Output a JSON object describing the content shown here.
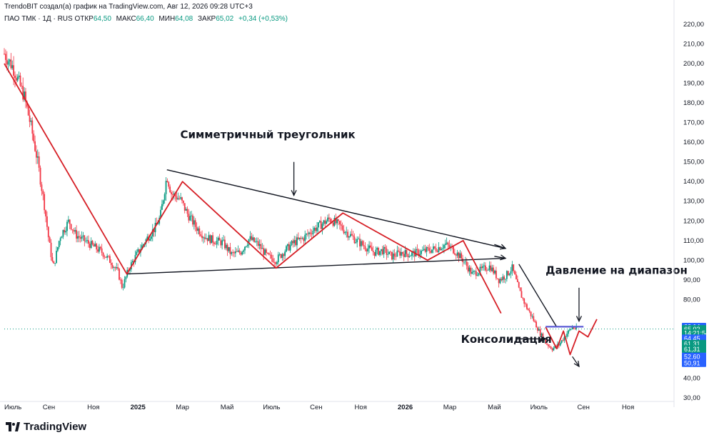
{
  "header": {
    "top_line": "TrendoBIT создал(а) график на TradingView.com, Авг 12, 2026 09:28 UTC+3",
    "symbol_line": "ПАО ТМК · 1Д · RUS",
    "ohlc": [
      {
        "label": "ОТКР",
        "value": "64,50"
      },
      {
        "label": "МАКС",
        "value": "66,40"
      },
      {
        "label": "МИН",
        "value": "64,08"
      },
      {
        "label": "ЗАКР",
        "value": "65,02"
      }
    ],
    "change": "+0,34 (+0,53%)"
  },
  "footer": {
    "logo_text": "TradingView"
  },
  "colors": {
    "up": "#089981",
    "down": "#f23645",
    "pattern": "#d61f26",
    "trendline": "#131722",
    "resistance": "#5b5bd6",
    "current_line": "#089981"
  },
  "chart_data": {
    "type": "candlestick",
    "y_ticks": [
      "220,00",
      "210,00",
      "200,00",
      "190,00",
      "180,00",
      "170,00",
      "160,00",
      "150,00",
      "140,00",
      "130,00",
      "120,00",
      "110,00",
      "100,00",
      "90,00",
      "80,00",
      "40,00",
      "30,00"
    ],
    "y_tick_values": [
      220,
      210,
      200,
      190,
      180,
      170,
      160,
      150,
      140,
      130,
      120,
      110,
      100,
      90,
      80,
      40,
      30
    ],
    "x_ticks": [
      {
        "label": "Июль",
        "x": 0
      },
      {
        "label": "Сен",
        "x": 2
      },
      {
        "label": "Ноя",
        "x": 4
      },
      {
        "label": "2025",
        "x": 6,
        "bold": true
      },
      {
        "label": "Мар",
        "x": 8
      },
      {
        "label": "Май",
        "x": 10
      },
      {
        "label": "Июль",
        "x": 12
      },
      {
        "label": "Сен",
        "x": 14
      },
      {
        "label": "Ноя",
        "x": 16
      },
      {
        "label": "2026",
        "x": 18,
        "bold": true
      },
      {
        "label": "Мар",
        "x": 20
      },
      {
        "label": "Май",
        "x": 22
      },
      {
        "label": "Июль",
        "x": 24
      },
      {
        "label": "Сен",
        "x": 26
      },
      {
        "label": "Ноя",
        "x": 28
      }
    ],
    "x_unit": "months since Jul 2024",
    "price_path": [
      [
        0.0,
        205
      ],
      [
        0.4,
        198
      ],
      [
        0.9,
        183
      ],
      [
        1.2,
        168
      ],
      [
        1.5,
        150
      ],
      [
        1.8,
        128
      ],
      [
        2.0,
        110
      ],
      [
        2.2,
        96
      ],
      [
        2.5,
        112
      ],
      [
        2.9,
        120
      ],
      [
        3.2,
        113
      ],
      [
        3.6,
        110
      ],
      [
        4.0,
        107
      ],
      [
        4.4,
        104
      ],
      [
        4.8,
        99
      ],
      [
        5.1,
        94
      ],
      [
        5.3,
        86
      ],
      [
        5.6,
        96
      ],
      [
        6.0,
        104
      ],
      [
        6.4,
        111
      ],
      [
        6.8,
        117
      ],
      [
        7.0,
        122
      ],
      [
        7.3,
        143
      ],
      [
        7.5,
        134
      ],
      [
        7.9,
        131
      ],
      [
        8.2,
        124
      ],
      [
        8.6,
        117
      ],
      [
        9.0,
        112
      ],
      [
        9.4,
        110
      ],
      [
        9.8,
        109
      ],
      [
        10.2,
        103
      ],
      [
        10.6,
        104
      ],
      [
        11.0,
        111
      ],
      [
        11.4,
        108
      ],
      [
        11.8,
        102
      ],
      [
        12.2,
        100
      ],
      [
        12.6,
        105
      ],
      [
        13.0,
        109
      ],
      [
        13.4,
        111
      ],
      [
        13.8,
        115
      ],
      [
        14.2,
        118
      ],
      [
        14.6,
        121
      ],
      [
        15.0,
        118
      ],
      [
        15.4,
        114
      ],
      [
        15.8,
        110
      ],
      [
        16.2,
        107
      ],
      [
        16.6,
        104
      ],
      [
        17.0,
        105
      ],
      [
        17.4,
        102
      ],
      [
        17.8,
        104
      ],
      [
        18.2,
        103
      ],
      [
        18.6,
        104
      ],
      [
        19.0,
        105
      ],
      [
        19.4,
        106
      ],
      [
        19.8,
        108
      ],
      [
        20.2,
        105
      ],
      [
        20.6,
        100
      ],
      [
        21.0,
        93
      ],
      [
        21.4,
        95
      ],
      [
        21.8,
        97
      ],
      [
        22.2,
        90
      ],
      [
        22.5,
        92
      ],
      [
        22.8,
        96
      ],
      [
        23.1,
        85
      ],
      [
        23.4,
        77
      ],
      [
        23.7,
        71
      ],
      [
        24.0,
        64
      ],
      [
        24.3,
        58
      ],
      [
        24.6,
        55
      ],
      [
        24.9,
        57
      ],
      [
        25.2,
        62
      ],
      [
        25.5,
        66
      ],
      [
        25.7,
        65
      ]
    ],
    "ylim": [
      30,
      225
    ],
    "xlim": [
      0,
      30
    ],
    "current_price": 65.02,
    "price_labels": [
      {
        "text": "66,14",
        "price": 66.14,
        "color": "#2962ff"
      },
      {
        "text": "65,02",
        "price": 65.02,
        "color": "#089981"
      },
      {
        "text": "14:21:54",
        "price": 62.9,
        "color": "#089981"
      },
      {
        "text": "64,45",
        "price": 60.2,
        "color": "#2962ff"
      },
      {
        "text": "61,31",
        "price": 57.5,
        "color": "#089981"
      },
      {
        "text": "61,31",
        "price": 54.8,
        "color": "#089981"
      },
      {
        "text": "52,60",
        "price": 51.0,
        "color": "#2962ff"
      },
      {
        "text": "50,91",
        "price": 47.7,
        "color": "#2962ff"
      }
    ],
    "annotations": [
      {
        "text": "Симметричный треугольник",
        "x": 7.9,
        "y": 162
      },
      {
        "text": "Давление на диапазон",
        "x": 24.3,
        "y": 93
      },
      {
        "text": "Консолидация",
        "x": 20.5,
        "y": 58
      }
    ],
    "lines": {
      "trendlines": [
        {
          "points": [
            [
              7.3,
              146
            ],
            [
              22.5,
              106
            ]
          ]
        },
        {
          "points": [
            [
              5.5,
              93
            ],
            [
              22.5,
              101
            ]
          ]
        },
        {
          "points": [
            [
              23.1,
              98
            ],
            [
              24.8,
              66
            ]
          ]
        }
      ],
      "zigzag": [
        [
          0.0,
          200
        ],
        [
          5.5,
          93
        ],
        [
          8.0,
          140
        ],
        [
          12.2,
          96
        ],
        [
          15.2,
          124
        ],
        [
          19.0,
          100
        ],
        [
          20.6,
          110
        ],
        [
          22.3,
          73
        ]
      ],
      "consolidation_zigzag": [
        [
          24.3,
          66
        ],
        [
          24.8,
          55
        ],
        [
          25.1,
          64
        ],
        [
          25.4,
          52
        ],
        [
          25.8,
          64
        ],
        [
          26.2,
          61
        ],
        [
          26.6,
          70
        ]
      ],
      "resistance": [
        [
          24.3,
          66.2
        ],
        [
          26.0,
          66.2
        ]
      ],
      "arrows": [
        {
          "from": [
            13.0,
            150
          ],
          "to": [
            13.0,
            133
          ]
        },
        {
          "from": [
            22.0,
            108
          ],
          "to": [
            22.5,
            106
          ]
        },
        {
          "from": [
            22.0,
            102
          ],
          "to": [
            22.5,
            101
          ]
        },
        {
          "from": [
            23.0,
            60
          ],
          "to": [
            24.3,
            60
          ]
        },
        {
          "from": [
            25.8,
            86
          ],
          "to": [
            25.8,
            69
          ]
        },
        {
          "from": [
            25.5,
            51
          ],
          "to": [
            25.8,
            46
          ]
        }
      ]
    }
  }
}
